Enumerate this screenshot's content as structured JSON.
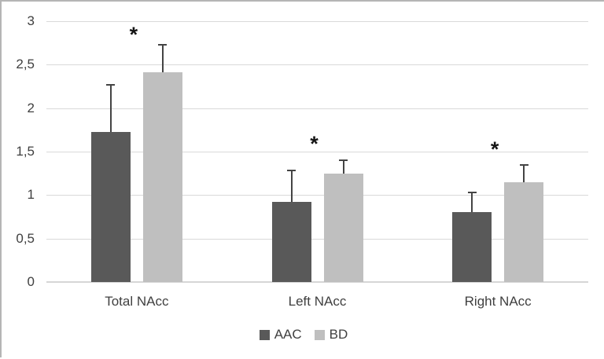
{
  "figure": {
    "background_color": "#ffffff",
    "border_color": "#b5b5b5"
  },
  "chart_data": {
    "type": "bar",
    "title": "",
    "xlabel": "",
    "ylabel": "",
    "categories": [
      "Total NAcc",
      "Left NAcc",
      "Right NAcc"
    ],
    "series": [
      {
        "name": "AAC",
        "color": "#595959",
        "values": [
          1.73,
          0.92,
          0.8
        ],
        "error_up": [
          0.54,
          0.36,
          0.23
        ]
      },
      {
        "name": "BD",
        "color": "#bfbfbf",
        "values": [
          2.41,
          1.25,
          1.15
        ],
        "error_up": [
          0.32,
          0.15,
          0.2
        ]
      }
    ],
    "annotations": [
      {
        "text": "*",
        "category_index": 0,
        "y": 2.88
      },
      {
        "text": "*",
        "category_index": 1,
        "y": 1.63
      },
      {
        "text": "*",
        "category_index": 2,
        "y": 1.56
      }
    ],
    "y_axis": {
      "min": 0,
      "max": 3,
      "step": 0.5,
      "tick_labels": [
        "0",
        "0,5",
        "1",
        "1,5",
        "2",
        "2,5",
        "3"
      ]
    },
    "grid": true,
    "gridline_color": "#d9d9d9",
    "error_bar_color": "#444444",
    "text_color": "#404040",
    "legend_position": "bottom"
  }
}
